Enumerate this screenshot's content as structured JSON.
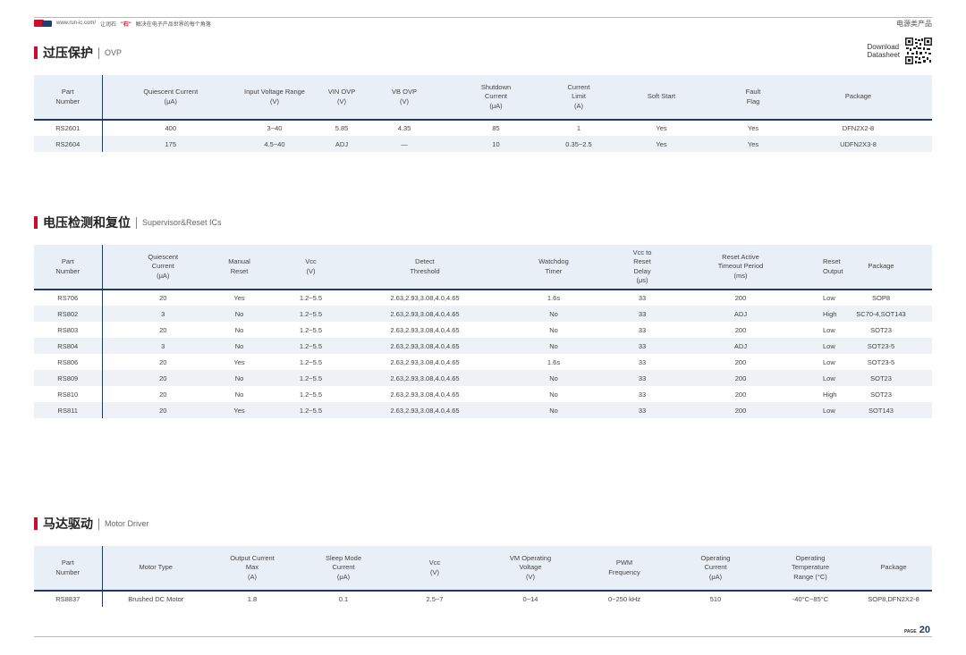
{
  "header": {
    "url": "www.run-ic.com/",
    "slogan_a": "让润石",
    "slogan_quote": "\"石\"",
    "slogan_b": "解决在电子产品世界的每个角落",
    "category": "电源类产品"
  },
  "datasheet": {
    "line1": "Download",
    "line2": "Datasheet"
  },
  "ovp": {
    "title_zh": "过压保护",
    "title_en": "OVP",
    "headers": [
      [
        "Part",
        "Number"
      ],
      [
        "Quiescent Current",
        "(μA)"
      ],
      [
        "Input Voltage Range",
        "(V)"
      ],
      [
        "VIN OVP",
        "(V)"
      ],
      [
        "VB OVP",
        "(V)"
      ],
      [
        "Shutdown",
        "Current",
        "(μA)"
      ],
      [
        "Current",
        "Limit",
        "(A)"
      ],
      [
        "Soft Start"
      ],
      [
        "Fault",
        "Flag"
      ],
      [
        "Package"
      ]
    ],
    "rows": [
      [
        "RS2601",
        "400",
        "3~40",
        "5.85",
        "4.35",
        "85",
        "1",
        "Yes",
        "Yes",
        "DFN2X2-8"
      ],
      [
        "RS2604",
        "175",
        "4.5~40",
        "ADJ",
        "—",
        "10",
        "0.35~2.5",
        "Yes",
        "Yes",
        "UDFN2X3-8"
      ]
    ]
  },
  "supervisor": {
    "title_zh": "电压检测和复位",
    "title_en": "Supervisor&Reset ICs",
    "headers": [
      [
        "Part",
        "Number"
      ],
      [
        "Quiescent",
        "Current",
        "(μA)"
      ],
      [
        "Manual",
        "Reset"
      ],
      [
        "Vcc",
        "(V)"
      ],
      [
        "Detect",
        "Threshold"
      ],
      [
        "Watchdog",
        "Timer"
      ],
      [
        "Vcc to Reset Delay",
        "(μs)"
      ],
      [
        "Reset Active",
        "Timeout Period",
        "(ms)"
      ],
      [
        "Reset",
        "Output"
      ],
      [
        "Package"
      ]
    ],
    "rows": [
      [
        "RS706",
        "20",
        "Yes",
        "1.2~5.5",
        "2.63,2.93,3.08,4.0,4.65",
        "1.6s",
        "33",
        "200",
        "Low",
        "SOP8"
      ],
      [
        "RS802",
        "3",
        "No",
        "1.2~5.5",
        "2.63,2.93,3.08,4.0,4.65",
        "No",
        "33",
        "ADJ",
        "High",
        "SC70-4,SOT143"
      ],
      [
        "RS803",
        "20",
        "No",
        "1.2~5.5",
        "2.63,2.93,3.08,4.0,4.65",
        "No",
        "33",
        "200",
        "Low",
        "SOT23"
      ],
      [
        "RS804",
        "3",
        "No",
        "1.2~5.5",
        "2.63,2.93,3.08,4.0,4.65",
        "No",
        "33",
        "ADJ",
        "Low",
        "SOT23-5"
      ],
      [
        "RS806",
        "20",
        "Yes",
        "1.2~5.5",
        "2.63,2.93,3.08,4.0,4.65",
        "1.6s",
        "33",
        "200",
        "Low",
        "SOT23-5"
      ],
      [
        "RS809",
        "20",
        "No",
        "1.2~5.5",
        "2.63,2.93,3.08,4.0,4.65",
        "No",
        "33",
        "200",
        "Low",
        "SOT23"
      ],
      [
        "RS810",
        "20",
        "No",
        "1.2~5.5",
        "2.63,2.93,3.08,4.0,4.65",
        "No",
        "33",
        "200",
        "High",
        "SOT23"
      ],
      [
        "RS811",
        "20",
        "Yes",
        "1.2~5.5",
        "2.63,2.93,3.08,4.0,4.65",
        "No",
        "33",
        "200",
        "Low",
        "SOT143"
      ]
    ]
  },
  "motor": {
    "title_zh": "马达驱动",
    "title_en": "Motor Driver",
    "headers": [
      [
        "Part",
        "Number"
      ],
      [
        "Motor Type"
      ],
      [
        "Output Current",
        "Max",
        "(A)"
      ],
      [
        "Sleep Mode",
        "Current",
        "(μA)"
      ],
      [
        "Vcc",
        "(V)"
      ],
      [
        "VM Operating",
        "Voltage",
        "(V)"
      ],
      [
        "PWM",
        "Frequency"
      ],
      [
        "Operating",
        "Current",
        "(μA)"
      ],
      [
        "Operating",
        "Temperature",
        "Range (°C)"
      ],
      [
        "Package"
      ]
    ],
    "rows": [
      [
        "RS8837",
        "Brushed DC Motor",
        "1.8",
        "0.1",
        "2.5~7",
        "0~14",
        "0~250 kHz",
        "510",
        "-40°C~85°C",
        "SOP8,DFN2X2-8"
      ]
    ]
  },
  "footer": {
    "page_label": "PAGE",
    "page_number": "20"
  },
  "colors": {
    "accent": "#c8102e",
    "navy": "#1f3b63",
    "header_bg": "#e9eff6",
    "row_alt": "#eef2f7"
  }
}
